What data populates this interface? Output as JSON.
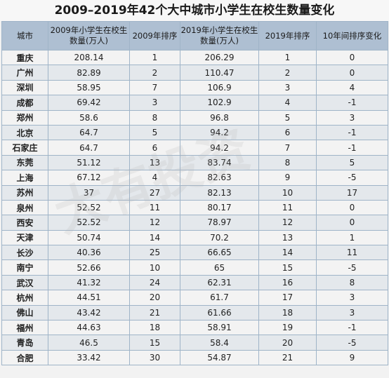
{
  "title": "2009–2019年42个大中城市小学生在校生数量变化",
  "headers": {
    "city": "城市",
    "students2009": "2009年小学生在校生数量(万人)",
    "rank2009": "2009年排序",
    "students2019": "2019年小学生在校生数量(万人)",
    "rank2019": "2019年排序",
    "change": "10年间排序变化"
  },
  "rows": [
    {
      "city": "重庆",
      "s2009": "208.14",
      "r2009": "1",
      "s2019": "206.29",
      "r2019": "1",
      "change": "0"
    },
    {
      "city": "广州",
      "s2009": "82.89",
      "r2009": "2",
      "s2019": "110.47",
      "r2019": "2",
      "change": "0"
    },
    {
      "city": "深圳",
      "s2009": "58.95",
      "r2009": "7",
      "s2019": "106.9",
      "r2019": "3",
      "change": "4"
    },
    {
      "city": "成都",
      "s2009": "69.42",
      "r2009": "3",
      "s2019": "102.9",
      "r2019": "4",
      "change": "-1"
    },
    {
      "city": "郑州",
      "s2009": "58.6",
      "r2009": "8",
      "s2019": "96.8",
      "r2019": "5",
      "change": "3"
    },
    {
      "city": "北京",
      "s2009": "64.7",
      "r2009": "5",
      "s2019": "94.2",
      "r2019": "6",
      "change": "-1"
    },
    {
      "city": "石家庄",
      "s2009": "64.7",
      "r2009": "6",
      "s2019": "94.2",
      "r2019": "7",
      "change": "-1"
    },
    {
      "city": "东莞",
      "s2009": "51.12",
      "r2009": "13",
      "s2019": "83.74",
      "r2019": "8",
      "change": "5"
    },
    {
      "city": "上海",
      "s2009": "67.12",
      "r2009": "4",
      "s2019": "82.63",
      "r2019": "9",
      "change": "-5"
    },
    {
      "city": "苏州",
      "s2009": "37",
      "r2009": "27",
      "s2019": "82.13",
      "r2019": "10",
      "change": "17"
    },
    {
      "city": "泉州",
      "s2009": "52.52",
      "r2009": "11",
      "s2019": "80.17",
      "r2019": "11",
      "change": "0"
    },
    {
      "city": "西安",
      "s2009": "52.52",
      "r2009": "12",
      "s2019": "78.97",
      "r2019": "12",
      "change": "0"
    },
    {
      "city": "天津",
      "s2009": "50.74",
      "r2009": "14",
      "s2019": "70.2",
      "r2019": "13",
      "change": "1"
    },
    {
      "city": "长沙",
      "s2009": "40.36",
      "r2009": "25",
      "s2019": "66.65",
      "r2019": "14",
      "change": "11"
    },
    {
      "city": "南宁",
      "s2009": "52.66",
      "r2009": "10",
      "s2019": "65",
      "r2019": "15",
      "change": "-5"
    },
    {
      "city": "武汉",
      "s2009": "41.32",
      "r2009": "24",
      "s2019": "62.31",
      "r2019": "16",
      "change": "8"
    },
    {
      "city": "杭州",
      "s2009": "44.51",
      "r2009": "20",
      "s2019": "61.7",
      "r2019": "17",
      "change": "3"
    },
    {
      "city": "佛山",
      "s2009": "43.42",
      "r2009": "21",
      "s2019": "61.66",
      "r2019": "18",
      "change": "3"
    },
    {
      "city": "福州",
      "s2009": "44.63",
      "r2009": "18",
      "s2019": "58.91",
      "r2019": "19",
      "change": "-1"
    },
    {
      "city": "青岛",
      "s2009": "46.5",
      "r2009": "15",
      "s2019": "58.4",
      "r2019": "20",
      "change": "-5"
    },
    {
      "city": "合肥",
      "s2009": "33.42",
      "r2009": "30",
      "s2019": "54.87",
      "r2019": "21",
      "change": "9"
    }
  ],
  "watermark": "大有投资"
}
